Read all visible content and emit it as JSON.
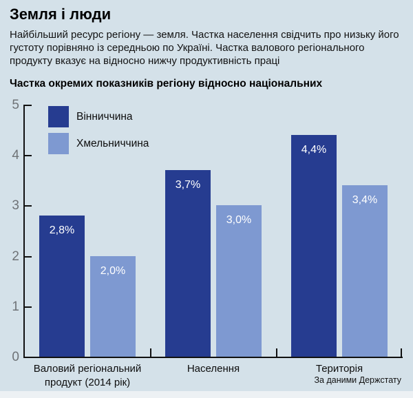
{
  "page": {
    "title": "Земля і люди",
    "description": "Найбільший ресурс регіону — земля. Частка населення свідчить про низьку його густоту порівняно із середньою по Україні. Частка валового регіонального продукту вказує на відносно нижчу продуктивність праці",
    "source": "За даними Держстату"
  },
  "colors": {
    "background": "#d4e1e9",
    "series_dark": "#263c90",
    "series_light": "#7e99d1",
    "axis": "#101010",
    "axis_label_gray": "#6e7276",
    "bar_value_text": "#ffffff"
  },
  "chart_data": {
    "type": "bar",
    "title": "Частка окремих показників регіону відносно національних",
    "categories": [
      "Валовий регіональний продукт (2014 рік)",
      "Населення",
      "Територія"
    ],
    "series": [
      {
        "name": "Вінниччина",
        "color": "#263c90",
        "values": [
          2.8,
          3.7,
          4.4
        ],
        "labels": [
          "2,8%",
          "3,7%",
          "4,4%"
        ]
      },
      {
        "name": "Хмельниччина",
        "color": "#7e99d1",
        "values": [
          2.0,
          3.0,
          3.4
        ],
        "labels": [
          "2,0%",
          "3,0%",
          "3,4%"
        ]
      }
    ],
    "ylim": [
      0,
      5
    ],
    "yticks": [
      0,
      1,
      2,
      3,
      4,
      5
    ],
    "grid": false,
    "legend_position": "top-left",
    "value_suffix": "%",
    "source": "За даними Держстату"
  }
}
